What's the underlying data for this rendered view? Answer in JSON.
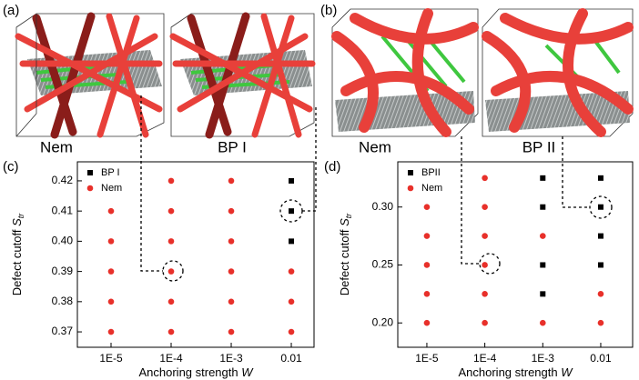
{
  "figure_labels": {
    "a": "(a)",
    "b": "(b)",
    "images": [
      "Nem",
      "BP I",
      "Nem",
      "BP II"
    ]
  },
  "chart_data": [
    {
      "type": "scatter",
      "panel_label": "(c)",
      "ylabel": "Defect cutoff ",
      "ylabel_symbol": "S",
      "ylabel_subscript": "tr",
      "xlabel": "Anchoring strength ",
      "xlabel_symbol": "W",
      "xscale": "log",
      "xlim": [
        2.75e-06,
        0.0239
      ],
      "xticks": [
        {
          "value": 1e-05,
          "label": "1E-5"
        },
        {
          "value": 0.0001,
          "label": "1E-4"
        },
        {
          "value": 0.001,
          "label": "1E-3"
        },
        0.01
      ],
      "ylim": [
        0.3649,
        0.4263
      ],
      "yticks": [
        0.37,
        0.38,
        0.39,
        {
          "value": 0.4,
          "label": "0.40"
        },
        0.41,
        0.42
      ],
      "legend": "upper left",
      "series": [
        {
          "name": "BP I",
          "color": "#000000",
          "marker": "square",
          "x": [
            0.01,
            0.01,
            0.01
          ],
          "y": [
            0.42,
            0.41,
            0.4
          ]
        },
        {
          "name": "Nem",
          "color": "#e8302a",
          "marker": "circle",
          "x": [
            1e-05,
            1e-05,
            1e-05,
            1e-05,
            1e-05,
            0.0001,
            0.0001,
            0.0001,
            0.0001,
            0.0001,
            0.0001,
            0.001,
            0.001,
            0.001,
            0.001,
            0.001,
            0.001,
            0.01,
            0.01,
            0.01
          ],
          "y": [
            0.37,
            0.38,
            0.39,
            0.4,
            0.41,
            0.37,
            0.38,
            0.39,
            0.4,
            0.41,
            0.42,
            0.37,
            0.38,
            0.39,
            0.4,
            0.41,
            0.42,
            0.37,
            0.38,
            0.39
          ]
        }
      ]
    },
    {
      "type": "scatter",
      "panel_label": "(d)",
      "ylabel": "Defect cutoff ",
      "ylabel_symbol": "S",
      "ylabel_subscript": "tr",
      "xlabel": "Anchoring strength ",
      "xlabel_symbol": "W",
      "xscale": "log",
      "xlim": [
        3.15e-06,
        0.0355
      ],
      "xticks": [
        {
          "value": 1e-05,
          "label": "1E-5"
        },
        {
          "value": 0.0001,
          "label": "1E-4"
        },
        {
          "value": 0.001,
          "label": "1E-3"
        },
        0.01
      ],
      "ylim": [
        0.179,
        0.339
      ],
      "yticks": [
        {
          "value": 0.2,
          "label": "0.20"
        },
        0.25,
        {
          "value": 0.3,
          "label": "0.30"
        }
      ],
      "legend": "upper left",
      "series": [
        {
          "name": "BPII",
          "color": "#000000",
          "marker": "square",
          "x": [
            0.001,
            0.001,
            0.001,
            0.001,
            0.01,
            0.01,
            0.01,
            0.01
          ],
          "y": [
            0.325,
            0.3,
            0.25,
            0.225,
            0.325,
            0.3,
            0.275,
            0.25
          ]
        },
        {
          "name": "Nem",
          "color": "#e8302a",
          "marker": "circle",
          "x": [
            1e-05,
            1e-05,
            1e-05,
            1e-05,
            1e-05,
            0.0001,
            0.0001,
            0.0001,
            0.0001,
            0.0001,
            0.0001,
            0.001,
            0.001,
            0.01,
            0.01
          ],
          "y": [
            0.2,
            0.225,
            0.25,
            0.275,
            0.3,
            0.2,
            0.225,
            0.25,
            0.275,
            0.3,
            0.325,
            0.2,
            0.275,
            0.2,
            0.225
          ]
        }
      ]
    }
  ]
}
